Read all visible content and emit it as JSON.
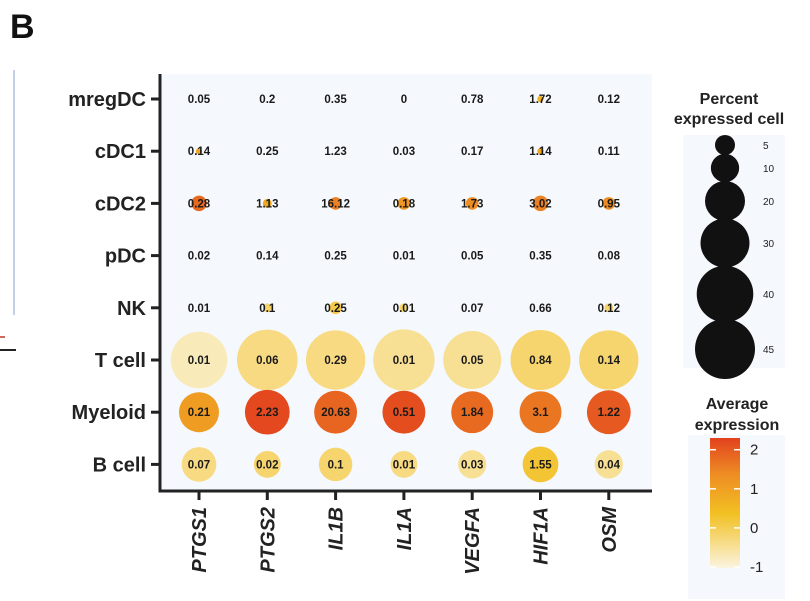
{
  "panel_label": "B",
  "chart_data": {
    "type": "dotplot",
    "rows": [
      "mregDC",
      "cDC1",
      "cDC2",
      "pDC",
      "NK",
      "T cell",
      "Myeloid",
      "B cell"
    ],
    "columns": [
      "PTGS1",
      "PTGS2",
      "IL1B",
      "IL1A",
      "VEGFA",
      "HIF1A",
      "OSM"
    ],
    "value_labels": [
      [
        "0.05",
        "0.2",
        "0.35",
        "0",
        "0.78",
        "1.72",
        "0.12"
      ],
      [
        "0.14",
        "0.25",
        "1.23",
        "0.03",
        "0.17",
        "1.14",
        "0.11"
      ],
      [
        "0.28",
        "1.13",
        "16.12",
        "0.18",
        "1.73",
        "3.02",
        "0.95"
      ],
      [
        "0.02",
        "0.14",
        "0.25",
        "0.01",
        "0.05",
        "0.35",
        "0.08"
      ],
      [
        "0.01",
        "0.1",
        "0.25",
        "0.01",
        "0.07",
        "0.66",
        "0.12"
      ],
      [
        "0.01",
        "0.06",
        "0.29",
        "0.01",
        "0.05",
        "0.84",
        "0.14"
      ],
      [
        "0.21",
        "2.23",
        "20.63",
        "0.51",
        "1.84",
        "3.1",
        "1.22"
      ],
      [
        "0.07",
        "0.02",
        "0.1",
        "0.01",
        "0.03",
        "1.55",
        "0.04"
      ]
    ],
    "percent_expressed": [
      [
        0,
        0,
        0,
        0,
        0,
        0.5,
        0
      ],
      [
        0.5,
        0,
        0,
        0,
        0,
        0.5,
        0
      ],
      [
        3,
        1,
        2,
        2,
        2,
        3,
        2
      ],
      [
        0,
        0,
        0,
        0,
        0,
        0,
        0
      ],
      [
        0,
        1,
        2,
        1,
        0,
        0,
        1
      ],
      [
        40,
        46,
        44,
        47,
        42,
        45,
        44
      ],
      [
        20,
        25,
        23,
        23,
        22,
        22,
        24
      ],
      [
        15,
        9,
        14,
        9,
        10,
        16,
        10
      ]
    ],
    "average_expression": [
      [
        -1,
        -1,
        -1,
        -1,
        -1,
        0.3,
        -1
      ],
      [
        0.5,
        -1,
        -1,
        -1,
        -1,
        0.5,
        -1
      ],
      [
        1.6,
        0.5,
        1.2,
        0.8,
        1.0,
        1.2,
        1.0
      ],
      [
        -1,
        -1,
        -1,
        -1,
        -1,
        -1,
        -1
      ],
      [
        -1,
        -0.4,
        -0.2,
        -0.4,
        -1,
        -1,
        -0.4
      ],
      [
        -0.8,
        -0.5,
        -0.5,
        -0.6,
        -0.6,
        -0.4,
        -0.4
      ],
      [
        0.7,
        2.2,
        1.7,
        2.1,
        1.6,
        1.4,
        1.9
      ],
      [
        -0.5,
        -0.4,
        -0.4,
        -0.5,
        -0.6,
        -0.1,
        -0.6
      ]
    ],
    "size_legend": {
      "title": "Percent expressed cell",
      "title_lines": [
        "Percent",
        "expressed cell"
      ],
      "values": [
        5,
        10,
        20,
        30,
        40,
        45
      ],
      "labels": [
        "5",
        "10",
        "20",
        "30",
        "40",
        "45"
      ]
    },
    "color_legend": {
      "title": "Average expression",
      "title_lines": [
        "Average",
        "expression"
      ],
      "ticks": [
        2,
        1,
        0,
        -1
      ],
      "tick_labels": [
        "2",
        "1",
        "0",
        "-1"
      ],
      "range": [
        -1,
        2.3
      ],
      "colors": [
        "#fbf4e0",
        "#f2c022",
        "#ee8d24",
        "#e2421e"
      ]
    }
  }
}
